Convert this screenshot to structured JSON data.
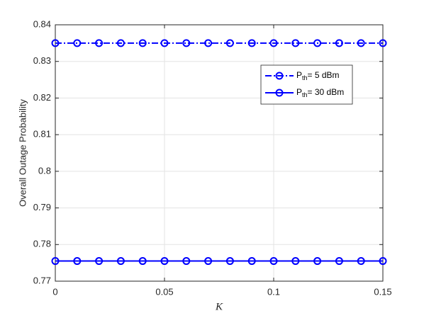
{
  "chart_data": {
    "type": "line",
    "x_label": "K",
    "y_label": "Overall Outage Probability",
    "x": [
      0,
      0.01,
      0.02,
      0.03,
      0.04,
      0.05,
      0.06,
      0.07,
      0.08,
      0.09,
      0.1,
      0.11,
      0.12,
      0.13,
      0.14,
      0.15
    ],
    "series": [
      {
        "name": {
          "main": "P",
          "sub": "th",
          "rest": "= 5 dBm"
        },
        "color": "#0000ff",
        "dash": "dashdot",
        "values": [
          0.835,
          0.835,
          0.835,
          0.835,
          0.835,
          0.835,
          0.835,
          0.835,
          0.835,
          0.835,
          0.835,
          0.835,
          0.835,
          0.835,
          0.835,
          0.835
        ]
      },
      {
        "name": {
          "main": "P",
          "sub": "th",
          "rest": "= 30 dBm"
        },
        "color": "#0000ff",
        "dash": "solid",
        "values": [
          0.7755,
          0.7755,
          0.7755,
          0.7755,
          0.7755,
          0.7755,
          0.7755,
          0.7755,
          0.7755,
          0.7755,
          0.7755,
          0.7755,
          0.7755,
          0.7755,
          0.7755,
          0.7755
        ]
      }
    ],
    "xlim": [
      0,
      0.15
    ],
    "xticks": [
      0,
      0.05,
      0.1,
      0.15
    ],
    "ylim": [
      0.77,
      0.84
    ],
    "yticks": [
      0.77,
      0.78,
      0.79,
      0.8,
      0.81,
      0.82,
      0.83,
      0.84
    ],
    "grid": true,
    "legend": "upper right"
  }
}
